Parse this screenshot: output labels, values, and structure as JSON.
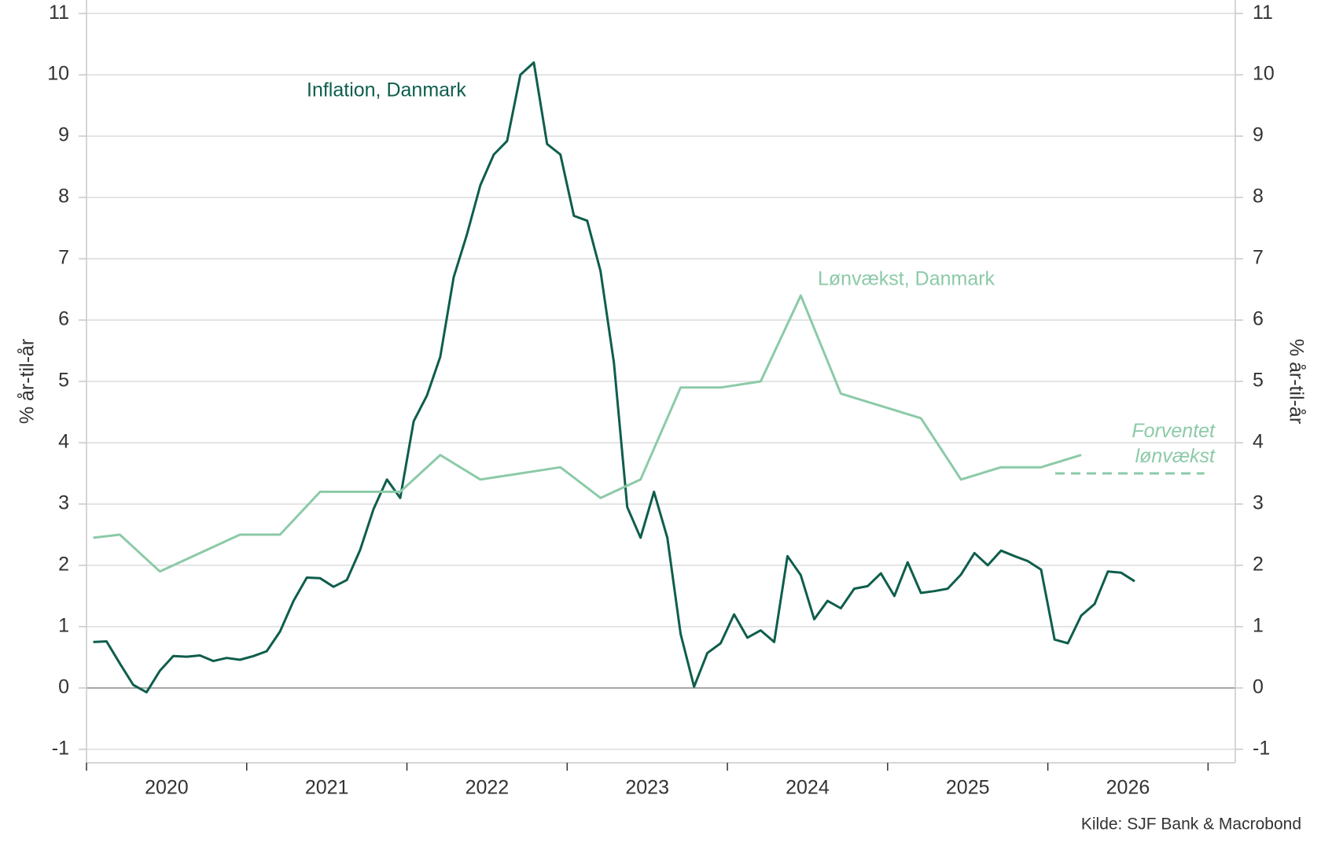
{
  "chart_data": {
    "type": "line",
    "y_label": "% år-til-år",
    "y2_label": "% år-til-år",
    "source": "Kilde: SJF Bank & Macrobond",
    "xlim": [
      2020,
      2027.17
    ],
    "ylim": [
      -1.22,
      11.22
    ],
    "y2lim": [
      -1.22,
      11.22
    ],
    "yticks": [
      -1,
      0,
      1,
      2,
      3,
      4,
      5,
      6,
      7,
      8,
      9,
      10,
      11
    ],
    "y2ticks": [
      -1,
      0,
      1,
      2,
      3,
      4,
      5,
      6,
      7,
      8,
      9,
      10,
      11
    ],
    "xticks": [
      {
        "value": 2020.5,
        "label": "2020"
      },
      {
        "value": 2021.5,
        "label": "2021"
      },
      {
        "value": 2022.5,
        "label": "2022"
      },
      {
        "value": 2023.5,
        "label": "2023"
      },
      {
        "value": 2024.5,
        "label": "2024"
      },
      {
        "value": 2025.5,
        "label": "2025"
      },
      {
        "value": 2026.5,
        "label": "2026"
      }
    ],
    "grid": true,
    "series": [
      {
        "name": "Inflation, Danmark",
        "color": "#0e5e4c",
        "x": [
          2020.042,
          2020.125,
          2020.208,
          2020.292,
          2020.375,
          2020.458,
          2020.542,
          2020.625,
          2020.708,
          2020.792,
          2020.875,
          2020.958,
          2021.042,
          2021.125,
          2021.208,
          2021.292,
          2021.375,
          2021.458,
          2021.542,
          2021.625,
          2021.708,
          2021.792,
          2021.875,
          2021.958,
          2022.042,
          2022.125,
          2022.208,
          2022.292,
          2022.375,
          2022.458,
          2022.542,
          2022.625,
          2022.708,
          2022.792,
          2022.875,
          2022.958,
          2023.042,
          2023.125,
          2023.208,
          2023.292,
          2023.375,
          2023.458,
          2023.542,
          2023.625,
          2023.708,
          2023.792,
          2023.875,
          2023.958,
          2024.042,
          2024.125,
          2024.208,
          2024.292,
          2024.375,
          2024.458,
          2024.542,
          2024.625,
          2024.708,
          2024.792,
          2024.875,
          2024.958,
          2025.042,
          2025.125,
          2025.208,
          2025.292,
          2025.375,
          2025.458,
          2025.542,
          2025.625,
          2025.708,
          2025.792,
          2025.875,
          2025.958,
          2026.042,
          2026.125,
          2026.208,
          2026.292,
          2026.375,
          2026.458,
          2026.542
        ],
        "values": [
          0.75,
          0.76,
          0.4,
          0.05,
          -0.07,
          0.28,
          0.52,
          0.51,
          0.53,
          0.44,
          0.49,
          0.46,
          0.52,
          0.6,
          0.92,
          1.42,
          1.8,
          1.79,
          1.65,
          1.76,
          2.25,
          2.92,
          3.4,
          3.1,
          4.35,
          4.77,
          5.4,
          6.7,
          7.4,
          8.2,
          8.7,
          8.92,
          10.0,
          10.2,
          8.87,
          8.7,
          7.7,
          7.62,
          6.8,
          5.3,
          2.95,
          2.45,
          3.2,
          2.45,
          0.88,
          0.02,
          0.57,
          0.73,
          1.2,
          0.82,
          0.94,
          0.75,
          2.15,
          1.84,
          1.12,
          1.42,
          1.3,
          1.62,
          1.66,
          1.87,
          1.5,
          2.05,
          1.55,
          1.58,
          1.62,
          1.85,
          2.2,
          2.0,
          2.24,
          2.15,
          2.07,
          1.93,
          0.79,
          0.73,
          1.18,
          1.37,
          1.9,
          1.88,
          1.74
        ]
      },
      {
        "name": "Lønvækst, Danmark",
        "color": "#8ccaa8",
        "x": [
          2020.042,
          2020.208,
          2020.458,
          2020.958,
          2021.208,
          2021.458,
          2021.958,
          2022.208,
          2022.458,
          2022.958,
          2023.208,
          2023.458,
          2023.708,
          2023.958,
          2024.208,
          2024.458,
          2024.708,
          2025.208,
          2025.458,
          2025.708,
          2025.958,
          2026.208
        ],
        "values": [
          2.45,
          2.5,
          1.9,
          2.5,
          2.5,
          3.2,
          3.2,
          3.8,
          3.4,
          3.6,
          3.1,
          3.4,
          4.9,
          4.9,
          5.0,
          6.4,
          4.8,
          4.4,
          3.4,
          3.6,
          3.6,
          3.8
        ]
      },
      {
        "name": "Forventet lønvækst",
        "color": "#8ccaa8",
        "dashed": true,
        "x": [
          2026.046,
          2026.977
        ],
        "values": [
          3.5,
          3.5
        ]
      }
    ]
  }
}
